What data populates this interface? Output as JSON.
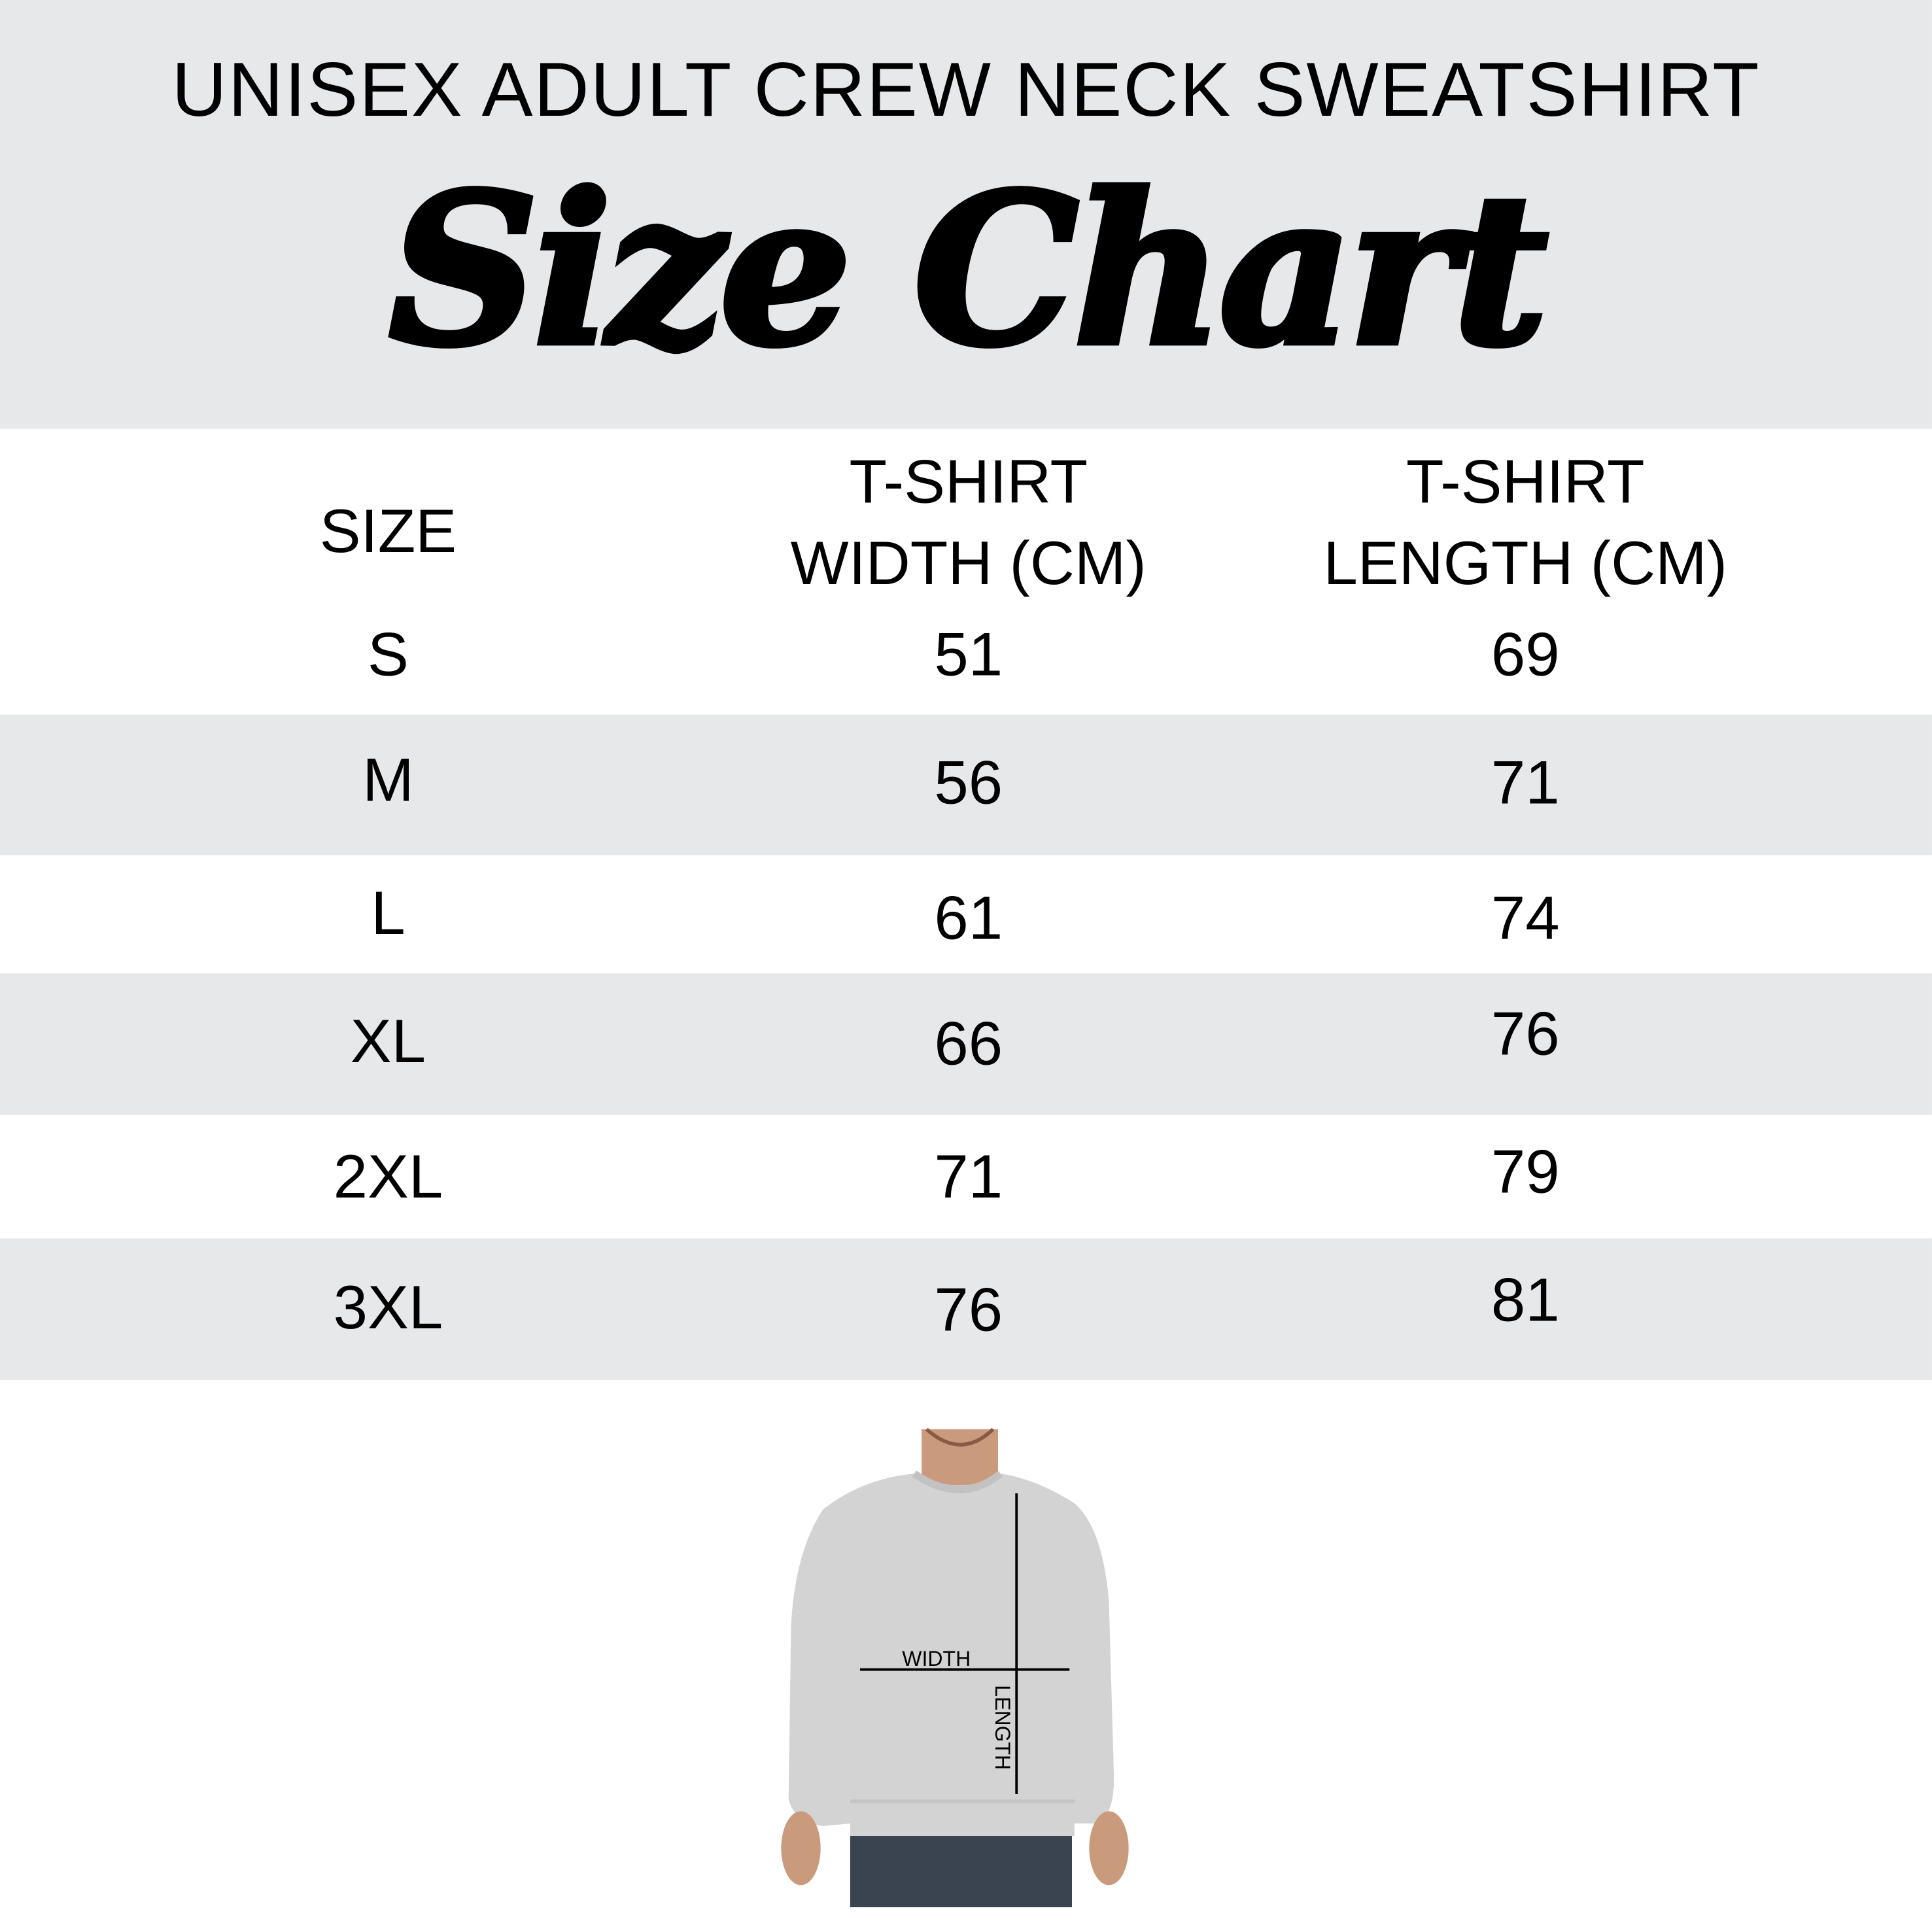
{
  "header": {
    "subtitle": "UNISEX ADULT CREW NECK SWEATSHIRT",
    "title": "Size Chart"
  },
  "table": {
    "columns": [
      "SIZE",
      "T-SHIRT WIDTH (CM)",
      "T-SHIRT LENGTH (CM)"
    ],
    "column_lines": [
      [
        "SIZE"
      ],
      [
        "T-SHIRT",
        "WIDTH (CM)"
      ],
      [
        "T-SHIRT",
        "LENGTH (CM)"
      ]
    ],
    "rows": [
      [
        "S",
        "51",
        "69"
      ],
      [
        "M",
        "56",
        "71"
      ],
      [
        "L",
        "61",
        "74"
      ],
      [
        "XL",
        "66",
        "76"
      ],
      [
        "2XL",
        "71",
        "79"
      ],
      [
        "3XL",
        "76",
        "81"
      ]
    ]
  },
  "diagram": {
    "width_label": "WIDTH",
    "length_label": "LENGTH"
  },
  "colors": {
    "band_gray": "#e7e8ea",
    "text": "#000000"
  }
}
